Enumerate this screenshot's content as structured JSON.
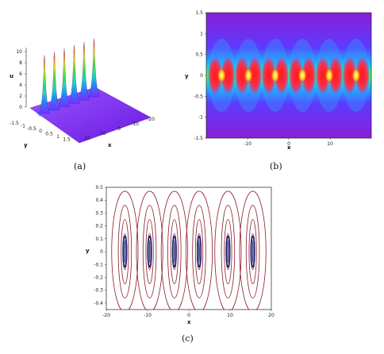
{
  "captions": {
    "a": "(a)",
    "b": "(b)",
    "c": "(c)"
  },
  "chart_data": [
    {
      "panel": "a",
      "type": "surface",
      "zlabel": "u",
      "ylabel": "y",
      "xlabel": "x",
      "z_ticks": [
        "0",
        "2",
        "4",
        "6",
        "8",
        "10"
      ],
      "y_ticks": [
        "-1.5",
        "-1",
        "-0.5",
        "0",
        "0.5",
        "1",
        "1.5"
      ],
      "x_ticks": [
        "20",
        "10",
        "0",
        "-10",
        "-20"
      ],
      "peak_count": 6,
      "peak_height": 10.5,
      "colormap": [
        "#7b2cff",
        "#2b7bff",
        "#19d6c0",
        "#3fe23f",
        "#f0e41c",
        "#ff2a1a"
      ]
    },
    {
      "panel": "b",
      "type": "heatmap",
      "xlabel": "x",
      "ylabel": "y",
      "x_ticks": [
        -10,
        0,
        10
      ],
      "y_ticks": [
        -1.5,
        -1,
        -0.5,
        0,
        0.5,
        1,
        1.5
      ],
      "xlim": [
        -20,
        20
      ],
      "ylim": [
        -1.5,
        1.5
      ],
      "peak_x": [
        -16.3,
        -9.8,
        -3.3,
        3.3,
        9.8,
        16.3
      ],
      "background": "#8a1fd6"
    },
    {
      "panel": "c",
      "type": "contour",
      "xlabel": "x",
      "ylabel": "y",
      "x_ticks": [
        -20,
        -10,
        0,
        10,
        20
      ],
      "y_ticks": [
        -0.4,
        -0.3,
        -0.2,
        -0.1,
        0,
        0.1,
        0.2,
        0.3,
        0.4,
        0.5
      ],
      "xlim": [
        -20,
        20
      ],
      "ylim": [
        -0.45,
        0.5
      ],
      "centers": [
        -15.5,
        -9.5,
        -3.5,
        2.5,
        9.5,
        15.5
      ],
      "half_widths": [
        3.2,
        1.6,
        0.9,
        0.5
      ],
      "heights": [
        0.47,
        0.36,
        0.25,
        0.14
      ],
      "contour_color": "#8b1a2b",
      "core_color": "#1a1f6e"
    }
  ]
}
